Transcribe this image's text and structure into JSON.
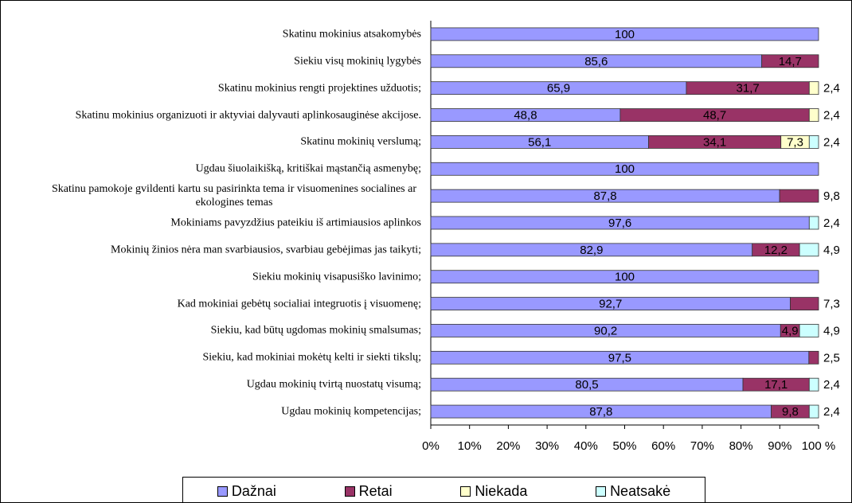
{
  "chart_data": {
    "type": "stacked_percent_barh",
    "categories": [
      "Skatinu mokinius atsakomybės",
      "Siekiu visų mokinių lygybės",
      "Skatinu mokinius rengti projektines užduotis;",
      "Skatinu mokinius organizuoti ir aktyviai dalyvauti aplinkosauginėse akcijose.",
      "Skatinu mokinių verslumą;",
      "Ugdau šiuolaikišką, kritiškai mąstančią asmenybę;",
      "Skatinu pamokoje gvildenti kartu su pasirinkta tema ir visuomenines socialines ar ekologines temas",
      "Mokiniams pavyzdžius pateikiu iš artimiausios aplinkos",
      "Mokinių žinios nėra man svarbiausios, svarbiau gebėjimas jas taikyti;",
      "Siekiu mokinių visapusiško lavinimo;",
      "Kad mokiniai gebėtų socialiai integruotis į visuomenę;",
      "Siekiu, kad būtų ugdomas mokinių smalsumas;",
      "Siekiu, kad mokiniai mokėtų kelti ir siekti tikslų;",
      "Ugdau mokinių tvirtą nuostatų visumą;",
      "Ugdau mokinių kompetencijas;"
    ],
    "series": [
      {
        "name": "Dažnai",
        "color": "#9999ff",
        "values": [
          100,
          85.6,
          65.9,
          48.8,
          56.1,
          100,
          87.8,
          97.6,
          82.9,
          100,
          92.7,
          90.2,
          97.5,
          80.5,
          87.8
        ],
        "value_labels": [
          "100",
          "85,6",
          "65,9",
          "48,8",
          "56,1",
          "100",
          "87,8",
          "97,6",
          "82,9",
          "100",
          "92,7",
          "90,2",
          "97,5",
          "80,5",
          "87,8"
        ]
      },
      {
        "name": "Retai",
        "color": "#993366",
        "values": [
          null,
          14.7,
          31.7,
          48.7,
          34.1,
          null,
          9.8,
          null,
          12.2,
          null,
          7.3,
          4.9,
          2.5,
          17.1,
          9.8
        ],
        "value_labels": [
          null,
          "14,7",
          "31,7",
          "48,7",
          "34,1",
          null,
          "9,8",
          null,
          "12,2",
          null,
          "7,3",
          "4,9",
          "2,5",
          "17,1",
          "9,8"
        ]
      },
      {
        "name": "Niekada",
        "color": "#ffffcc",
        "values": [
          null,
          null,
          2.4,
          2.4,
          7.3,
          null,
          null,
          null,
          null,
          null,
          null,
          null,
          null,
          null,
          null
        ],
        "value_labels": [
          null,
          null,
          "2,4",
          "2,4",
          "7,3",
          null,
          null,
          null,
          null,
          null,
          null,
          null,
          null,
          null,
          null
        ]
      },
      {
        "name": "Neatsakė",
        "color": "#ccffff",
        "values": [
          null,
          null,
          null,
          null,
          2.4,
          null,
          null,
          2.4,
          4.9,
          null,
          null,
          4.9,
          null,
          2.4,
          2.4
        ],
        "value_labels": [
          null,
          null,
          null,
          null,
          "2,4",
          null,
          null,
          "2,4",
          "4,9",
          null,
          null,
          "4,9",
          null,
          "2,4",
          "2,4"
        ]
      }
    ],
    "xlim": [
      0,
      100
    ],
    "xticks": [
      {
        "value": 0,
        "label": "0%"
      },
      {
        "value": 10,
        "label": "10%"
      },
      {
        "value": 20,
        "label": "20%"
      },
      {
        "value": 30,
        "label": "30%"
      },
      {
        "value": 40,
        "label": "40%"
      },
      {
        "value": 50,
        "label": "50%"
      },
      {
        "value": 60,
        "label": "60%"
      },
      {
        "value": 70,
        "label": "70%"
      },
      {
        "value": 80,
        "label": "80%"
      },
      {
        "value": 90,
        "label": "90%"
      },
      {
        "value": 100,
        "label": "100 %"
      }
    ],
    "legend": "bottom"
  }
}
